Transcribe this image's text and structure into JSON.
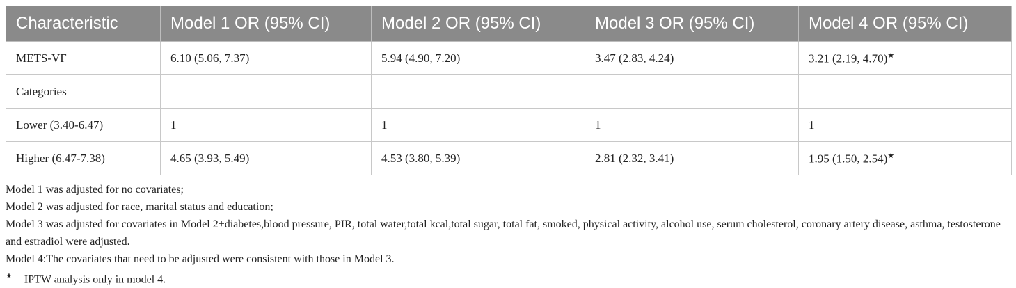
{
  "table": {
    "header": [
      "Characteristic",
      "Model 1 OR (95% CI)",
      "Model 2 OR (95% CI)",
      "Model 3 OR (95% CI)",
      "Model 4 OR (95% CI)"
    ],
    "rows": [
      [
        "METS-VF",
        "6.10 (5.06, 7.37)",
        "5.94 (4.90, 7.20)",
        "3.47 (2.83, 4.24)",
        {
          "text": "3.21 (2.19, 4.70)",
          "sup": "★"
        }
      ],
      [
        "Categories",
        "",
        "",
        "",
        ""
      ],
      [
        "Lower (3.40-6.47)",
        "1",
        "1",
        "1",
        "1"
      ],
      [
        "Higher (6.47-7.38)",
        "4.65 (3.93, 5.49)",
        "4.53 (3.80, 5.39)",
        "2.81 (2.32, 3.41)",
        {
          "text": "1.95 (1.50, 2.54)",
          "sup": "★"
        }
      ]
    ]
  },
  "footnotes": [
    "Model 1 was adjusted for no covariates;",
    "Model 2 was adjusted for race, marital status and education;",
    "Model 3 was adjusted for covariates in Model 2+diabetes,blood pressure, PIR, total water,total kcal,total sugar, total fat, smoked, physical activity, alcohol use, serum cholesterol, coronary artery disease, asthma, testosterone and estradiol were adjusted.",
    "Model 4:The covariates that need to be adjusted were consistent with those in Model 3.",
    {
      "sup": "★",
      "text": " = IPTW analysis only in model 4."
    }
  ]
}
